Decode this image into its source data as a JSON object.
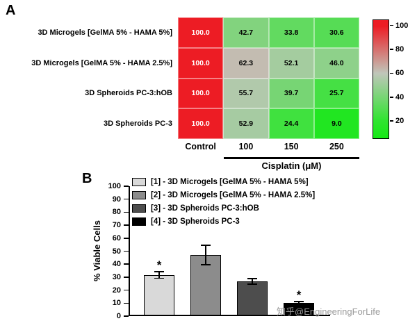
{
  "panel_labels": {
    "a": "A",
    "b": "B"
  },
  "watermark": "知乎@EngineeringForLife",
  "chart_data": [
    {
      "type": "heatmap",
      "panel": "A",
      "rows": [
        "3D Microgels [GelMA 5% - HAMA 5%]",
        "3D Microgels [GelMA 5% - HAMA 2.5%]",
        "3D Spheroids PC-3:hOB",
        "3D Spheroids PC-3"
      ],
      "columns": [
        "Control",
        "100",
        "150",
        "250"
      ],
      "values": [
        [
          100.0,
          42.7,
          33.8,
          30.6
        ],
        [
          100.0,
          62.3,
          52.1,
          46.0
        ],
        [
          100.0,
          55.7,
          39.7,
          25.7
        ],
        [
          100.0,
          52.9,
          24.4,
          9.0
        ]
      ],
      "xlabel": "Cisplatin (μM)",
      "colorbar": {
        "ticks": [
          100,
          80,
          60,
          40,
          20
        ],
        "color_high": "#ed1c24",
        "color_mid": "#c0c6ba",
        "color_low": "#30e430",
        "color_lowest": "#15e815"
      }
    },
    {
      "type": "bar",
      "panel": "B",
      "categories": [
        "[1] - 3D Microgels [GelMA 5% - HAMA 5%]",
        "[2] - 3D Microgels [GelMA 5% - HAMA 2.5%]",
        "[3] - 3D Spheroids PC-3:hOB",
        "[4] - 3D Spheroids PC-3"
      ],
      "values": [
        30.6,
        46.0,
        25.7,
        9.0
      ],
      "errors": [
        3.0,
        8.0,
        2.5,
        1.5
      ],
      "significance": [
        "*",
        "",
        "",
        "*"
      ],
      "colors": [
        "#d9d9d9",
        "#8c8c8c",
        "#4d4d4d",
        "#000000"
      ],
      "ylabel": "% Viable Cells",
      "ylim": [
        0,
        100
      ],
      "ytick_step": 10,
      "legend_position": "top-left",
      "grid": false
    }
  ]
}
